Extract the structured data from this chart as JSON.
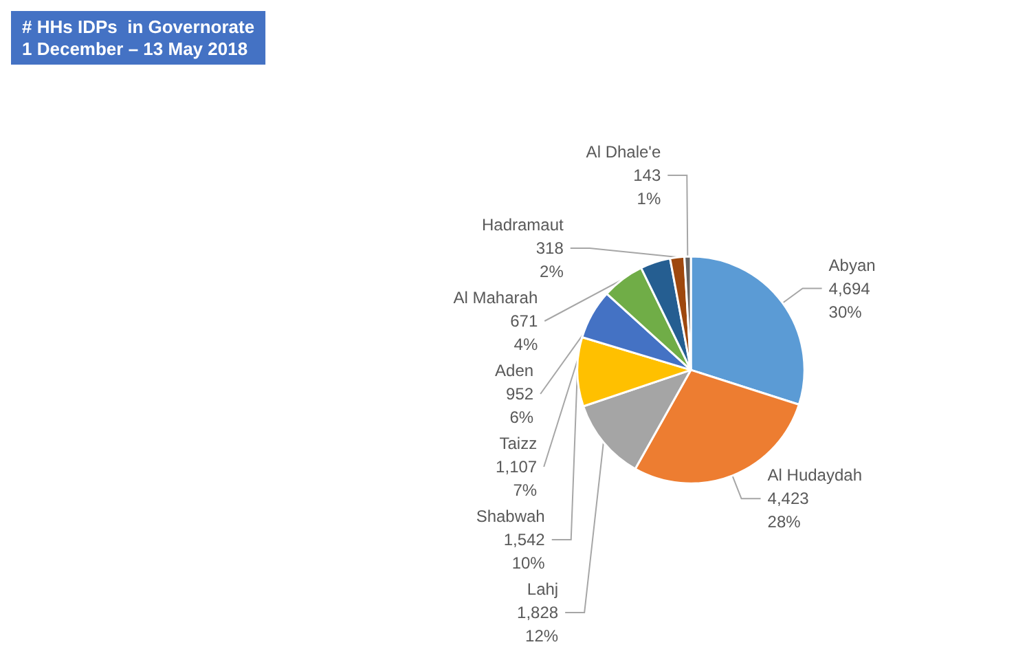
{
  "chart_data": {
    "type": "pie",
    "title": "# HHs IDPs  in Governorate",
    "subtitle": "1 December – 13 May 2018",
    "categories": [
      "Abyan",
      "Al Hudaydah",
      "Lahj",
      "Shabwah",
      "Taizz",
      "Aden",
      "Al Maharah",
      "Hadramaut",
      "Al Dhale'e"
    ],
    "values": [
      4694,
      4423,
      1828,
      1542,
      1107,
      952,
      671,
      318,
      143
    ],
    "value_labels": [
      "4,694\n30%",
      "4,423\n28%",
      "1,828\n12%",
      "1,542\n10%",
      "1,107\n7%",
      "952\n6%",
      "671\n4%",
      "318\n2%",
      "143\n1%"
    ],
    "colors": [
      "#5b9bd5",
      "#ed7d31",
      "#a5a5a5",
      "#ffc000",
      "#4472c4",
      "#70ad47",
      "#255e91",
      "#9e480e",
      "#636363"
    ],
    "legend": false
  }
}
